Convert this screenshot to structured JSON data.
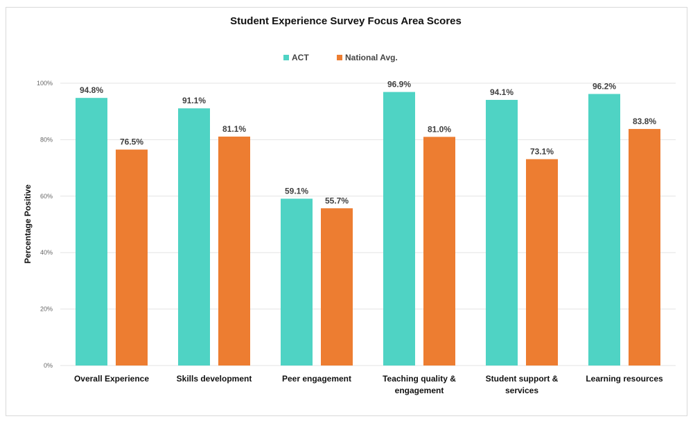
{
  "chart_data": {
    "type": "bar",
    "title": "Student Experience Survey Focus Area Scores",
    "ylabel": "Percentage Positive",
    "xlabel": "",
    "ylim": [
      0,
      100
    ],
    "yticks": [
      "0%",
      "20%",
      "40%",
      "60%",
      "80%",
      "100%"
    ],
    "grid": true,
    "legend_placement": "top",
    "categories": [
      [
        "Overall Experience"
      ],
      [
        "Skills development"
      ],
      [
        "Peer engagement"
      ],
      [
        "Teaching quality &",
        "engagement"
      ],
      [
        "Student support &",
        "services"
      ],
      [
        "Learning resources"
      ]
    ],
    "series": [
      {
        "name": "ACT",
        "color": "#4fd3c4",
        "values": [
          94.8,
          91.1,
          59.1,
          96.9,
          94.1,
          96.2
        ],
        "labels": [
          "94.8%",
          "91.1%",
          "59.1%",
          "96.9%",
          "94.1%",
          "96.2%"
        ]
      },
      {
        "name": "National Avg.",
        "color": "#ed7d31",
        "values": [
          76.5,
          81.1,
          55.7,
          81.0,
          73.1,
          83.8
        ],
        "labels": [
          "76.5%",
          "81.1%",
          "55.7%",
          "81.0%",
          "73.1%",
          "83.8%"
        ]
      }
    ]
  }
}
